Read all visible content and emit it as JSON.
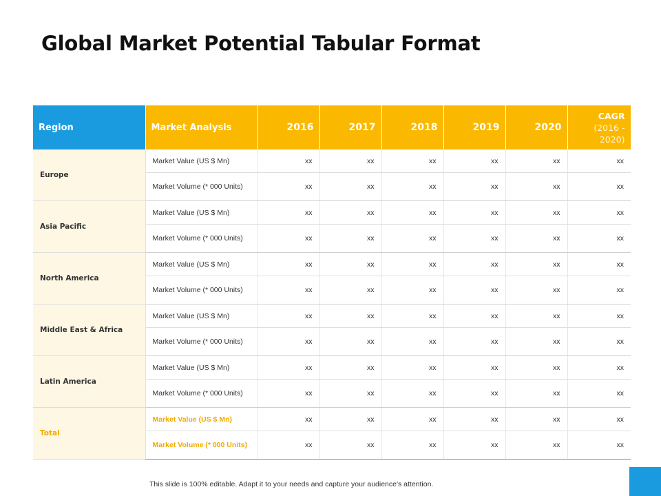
{
  "title": "Global Market Potential Tabular Format",
  "table": {
    "headers": {
      "region": "Region",
      "market_analysis": "Market Analysis",
      "years": [
        "2016",
        "2017",
        "2018",
        "2019",
        "2020"
      ],
      "cagr_title": "CAGR",
      "cagr_range": "(2016 - 2020)"
    },
    "regions": [
      {
        "name": "Europe",
        "rows": [
          {
            "metric": "Market Value (US $ Mn)",
            "values": [
              "xx",
              "xx",
              "xx",
              "xx",
              "xx",
              "xx"
            ]
          },
          {
            "metric": "Market Volume (* 000 Units)",
            "values": [
              "xx",
              "xx",
              "xx",
              "xx",
              "xx",
              "xx"
            ]
          }
        ]
      },
      {
        "name": "Asia Pacific",
        "rows": [
          {
            "metric": "Market Value (US $ Mn)",
            "values": [
              "xx",
              "xx",
              "xx",
              "xx",
              "xx",
              "xx"
            ]
          },
          {
            "metric": "Market Volume (* 000 Units)",
            "values": [
              "xx",
              "xx",
              "xx",
              "xx",
              "xx",
              "xx"
            ]
          }
        ]
      },
      {
        "name": "North America",
        "rows": [
          {
            "metric": "Market Value (US $ Mn)",
            "values": [
              "xx",
              "xx",
              "xx",
              "xx",
              "xx",
              "xx"
            ]
          },
          {
            "metric": "Market Volume (* 000 Units)",
            "values": [
              "xx",
              "xx",
              "xx",
              "xx",
              "xx",
              "xx"
            ]
          }
        ]
      },
      {
        "name": "Middle East & Africa",
        "rows": [
          {
            "metric": "Market Value (US $ Mn)",
            "values": [
              "xx",
              "xx",
              "xx",
              "xx",
              "xx",
              "xx"
            ]
          },
          {
            "metric": "Market Volume (* 000 Units)",
            "values": [
              "xx",
              "xx",
              "xx",
              "xx",
              "xx",
              "xx"
            ]
          }
        ]
      },
      {
        "name": "Latin America",
        "rows": [
          {
            "metric": "Market Value (US $ Mn)",
            "values": [
              "xx",
              "xx",
              "xx",
              "xx",
              "xx",
              "xx"
            ]
          },
          {
            "metric": "Market Volume (* 000 Units)",
            "values": [
              "xx",
              "xx",
              "xx",
              "xx",
              "xx",
              "xx"
            ]
          }
        ]
      },
      {
        "name": "Total",
        "rows": [
          {
            "metric": "Market Value (US $ Mn)",
            "values": [
              "xx",
              "xx",
              "xx",
              "xx",
              "xx",
              "xx"
            ]
          },
          {
            "metric": "Market Volume (* 000 Units)",
            "values": [
              "xx",
              "xx",
              "xx",
              "xx",
              "xx",
              "xx"
            ]
          }
        ]
      }
    ]
  },
  "footnote": "This slide is 100% editable. Adapt it to your needs and capture your audience's attention.",
  "colors": {
    "header_blue": "#1a9be0",
    "header_yellow": "#fbb800",
    "region_bg": "#fdf7e4",
    "total_text": "#f2a900"
  }
}
